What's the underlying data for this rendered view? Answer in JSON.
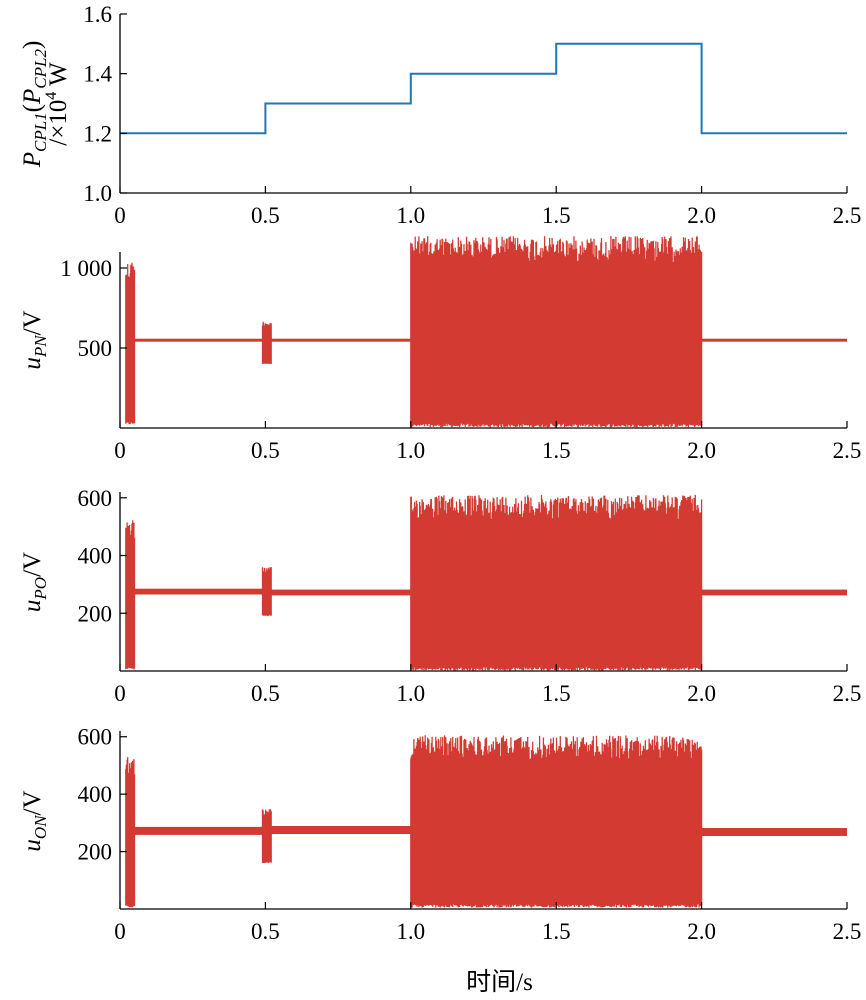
{
  "chart_data": [
    {
      "type": "line",
      "title": "",
      "ylabel": {
        "main": "P",
        "sub1": "CPL1",
        "open": "(",
        "main2": "P",
        "sub2": "CPL2",
        "close": ")",
        "unit_prefix": "/×10",
        "unit_exp": "4",
        "unit": " W"
      },
      "xlim": [
        0,
        2.5
      ],
      "ylim": [
        1.0,
        1.6
      ],
      "xticks": [
        0,
        0.5,
        1.0,
        1.5,
        2.0,
        2.5
      ],
      "xtick_labels": [
        "0",
        "0.5",
        "1.0",
        "1.5",
        "2.0",
        "2.5"
      ],
      "yticks": [
        1.0,
        1.2,
        1.4,
        1.6
      ],
      "ytick_labels": [
        "1.0",
        "1.2",
        "1.4",
        "1.6"
      ],
      "color": "#1f77b4",
      "series": [
        {
          "x": [
            0,
            0.5,
            0.5,
            1.0,
            1.0,
            1.5,
            1.5,
            2.0,
            2.0,
            2.5
          ],
          "y": [
            1.2,
            1.2,
            1.3,
            1.3,
            1.4,
            1.4,
            1.5,
            1.5,
            1.2,
            1.2
          ]
        }
      ]
    },
    {
      "type": "line",
      "title": "",
      "ylabel": {
        "main": "u",
        "sub": "PN",
        "unit": "/V"
      },
      "xlim": [
        0,
        2.5
      ],
      "ylim": [
        0,
        1100
      ],
      "xticks": [
        0,
        0.5,
        1.0,
        1.5,
        2.0,
        2.5
      ],
      "xtick_labels": [
        "0",
        "0.5",
        "1.0",
        "1.5",
        "2.0",
        "2.5"
      ],
      "yticks": [
        500,
        1000
      ],
      "ytick_labels": [
        "500",
        "1 000"
      ],
      "color": "#d23a32",
      "segments": [
        {
          "x0": 0.02,
          "x1": 0.05,
          "kind": "osc",
          "min": 20,
          "max": 1050
        },
        {
          "x0": 0.05,
          "x1": 0.49,
          "kind": "band",
          "center": 550,
          "half": 8
        },
        {
          "x0": 0.49,
          "x1": 0.52,
          "kind": "osc",
          "min": 400,
          "max": 670
        },
        {
          "x0": 0.52,
          "x1": 1.0,
          "kind": "band",
          "center": 550,
          "half": 8
        },
        {
          "x0": 1.0,
          "x1": 2.0,
          "kind": "osc",
          "min": 5,
          "max": 1200
        },
        {
          "x0": 2.0,
          "x1": 2.5,
          "kind": "band",
          "center": 550,
          "half": 8
        }
      ]
    },
    {
      "type": "line",
      "title": "",
      "ylabel": {
        "main": "u",
        "sub": "PO",
        "unit": "/V"
      },
      "xlim": [
        0,
        2.5
      ],
      "ylim": [
        0,
        620
      ],
      "xticks": [
        0,
        0.5,
        1.0,
        1.5,
        2.0,
        2.5
      ],
      "xtick_labels": [
        "0",
        "0.5",
        "1.0",
        "1.5",
        "2.0",
        "2.5"
      ],
      "yticks": [
        200,
        400,
        600
      ],
      "ytick_labels": [
        "200",
        "400",
        "600"
      ],
      "color": "#d23a32",
      "segments": [
        {
          "x0": 0.02,
          "x1": 0.05,
          "kind": "osc",
          "min": 5,
          "max": 530
        },
        {
          "x0": 0.05,
          "x1": 0.49,
          "kind": "band",
          "center": 275,
          "half": 10
        },
        {
          "x0": 0.49,
          "x1": 0.52,
          "kind": "osc",
          "min": 190,
          "max": 360
        },
        {
          "x0": 0.52,
          "x1": 1.0,
          "kind": "band",
          "center": 272,
          "half": 10
        },
        {
          "x0": 1.0,
          "x1": 2.0,
          "kind": "osc",
          "min": 2,
          "max": 610
        },
        {
          "x0": 2.0,
          "x1": 2.5,
          "kind": "band",
          "center": 272,
          "half": 10
        }
      ]
    },
    {
      "type": "line",
      "title": "",
      "ylabel": {
        "main": "u",
        "sub": "ON",
        "unit": "/V"
      },
      "xlim": [
        0,
        2.5
      ],
      "ylim": [
        0,
        620
      ],
      "xticks": [
        0,
        0.5,
        1.0,
        1.5,
        2.0,
        2.5
      ],
      "xtick_labels": [
        "0",
        "0.5",
        "1.0",
        "1.5",
        "2.0",
        "2.5"
      ],
      "yticks": [
        200,
        400,
        600
      ],
      "ytick_labels": [
        "200",
        "400",
        "600"
      ],
      "xlabel": "时间/s",
      "color": "#d23a32",
      "segments": [
        {
          "x0": 0.02,
          "x1": 0.05,
          "kind": "osc",
          "min": 5,
          "max": 530
        },
        {
          "x0": 0.05,
          "x1": 0.49,
          "kind": "band",
          "center": 272,
          "half": 14
        },
        {
          "x0": 0.49,
          "x1": 0.52,
          "kind": "osc",
          "min": 160,
          "max": 350
        },
        {
          "x0": 0.52,
          "x1": 1.0,
          "kind": "band",
          "center": 275,
          "half": 14
        },
        {
          "x0": 1.0,
          "x1": 2.0,
          "kind": "osc",
          "min": 5,
          "max": 605
        },
        {
          "x0": 2.0,
          "x1": 2.5,
          "kind": "band",
          "center": 268,
          "half": 14
        }
      ]
    }
  ]
}
